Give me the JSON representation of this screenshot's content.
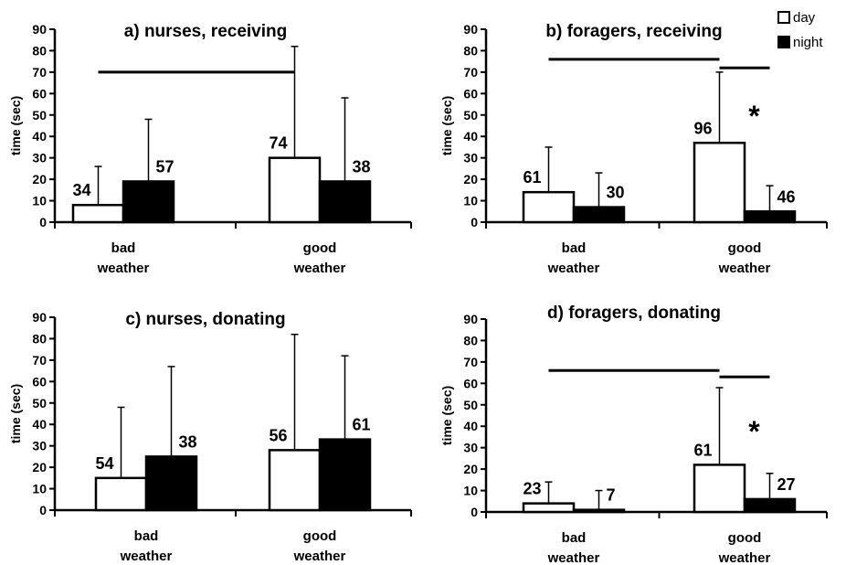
{
  "legend": [
    {
      "label": "day",
      "color": "#ffffff"
    },
    {
      "label": "night",
      "color": "#000000"
    }
  ],
  "chart_data": [
    {
      "type": "bar",
      "title": "a) nurses, receiving",
      "ylabel": "time (sec)",
      "ylim": [
        0,
        90
      ],
      "yticks": [
        "0",
        "10",
        "20",
        "30",
        "40",
        "50",
        "60",
        "70",
        "80",
        "90"
      ],
      "categories": [
        [
          "bad",
          "weather"
        ],
        [
          "good",
          "weather"
        ]
      ],
      "series": [
        {
          "name": "day",
          "color": "#ffffff",
          "values": [
            8,
            30
          ],
          "errors": [
            26,
            82
          ],
          "n": [
            "34",
            "74"
          ]
        },
        {
          "name": "night",
          "color": "#000000",
          "values": [
            19,
            19
          ],
          "errors": [
            48,
            58
          ],
          "n": [
            "57",
            "38"
          ]
        }
      ],
      "significance_lines": [
        {
          "from": "bad-day",
          "to": "good-day",
          "y": 70
        }
      ],
      "stars": []
    },
    {
      "type": "bar",
      "title": "b) foragers, receiving",
      "ylabel": "time (sec)",
      "ylim": [
        0,
        90
      ],
      "yticks": [
        "0",
        "10",
        "20",
        "30",
        "40",
        "50",
        "60",
        "70",
        "80",
        "90"
      ],
      "categories": [
        [
          "bad",
          "weather"
        ],
        [
          "good",
          "weather"
        ]
      ],
      "series": [
        {
          "name": "day",
          "color": "#ffffff",
          "values": [
            14,
            37
          ],
          "errors": [
            35,
            70
          ],
          "n": [
            "61",
            "96"
          ]
        },
        {
          "name": "night",
          "color": "#000000",
          "values": [
            7,
            5
          ],
          "errors": [
            23,
            17
          ],
          "n": [
            "30",
            "46"
          ]
        }
      ],
      "significance_lines": [
        {
          "from": "bad-day",
          "to": "good-day",
          "y": 76
        },
        {
          "from": "good-day",
          "to": "good-night",
          "y": 72
        }
      ],
      "stars": [
        {
          "category": 1,
          "text": "*",
          "y": 50
        }
      ]
    },
    {
      "type": "bar",
      "title": "c) nurses, donating",
      "ylabel": "time (sec)",
      "ylim": [
        0,
        90
      ],
      "yticks": [
        "0",
        "10",
        "20",
        "30",
        "40",
        "50",
        "60",
        "70",
        "80",
        "90"
      ],
      "categories": [
        [
          "bad",
          "weather"
        ],
        [
          "good",
          "weather"
        ]
      ],
      "series": [
        {
          "name": "day",
          "color": "#ffffff",
          "values": [
            15,
            28
          ],
          "errors": [
            48,
            82
          ],
          "n": [
            "54",
            "56"
          ]
        },
        {
          "name": "night",
          "color": "#000000",
          "values": [
            25,
            33
          ],
          "errors": [
            67,
            72
          ],
          "n": [
            "38",
            "61"
          ]
        }
      ],
      "significance_lines": [],
      "stars": []
    },
    {
      "type": "bar",
      "title": "d) foragers, donating",
      "ylabel": "time (sec)",
      "ylim": [
        0,
        90
      ],
      "yticks": [
        "0",
        "10",
        "20",
        "30",
        "40",
        "50",
        "60",
        "70",
        "80",
        "90"
      ],
      "categories": [
        [
          "bad",
          "weather"
        ],
        [
          "good",
          "weather"
        ]
      ],
      "series": [
        {
          "name": "day",
          "color": "#ffffff",
          "values": [
            4,
            22
          ],
          "errors": [
            14,
            58
          ],
          "n": [
            "23",
            "61"
          ]
        },
        {
          "name": "night",
          "color": "#000000",
          "values": [
            1,
            6
          ],
          "errors": [
            10,
            18
          ],
          "n": [
            "7",
            "27"
          ]
        }
      ],
      "significance_lines": [
        {
          "from": "bad-day",
          "to": "good-day",
          "y": 66
        },
        {
          "from": "good-day",
          "to": "good-night",
          "y": 63
        }
      ],
      "stars": [
        {
          "category": 1,
          "text": "*",
          "y": 38
        }
      ]
    }
  ]
}
